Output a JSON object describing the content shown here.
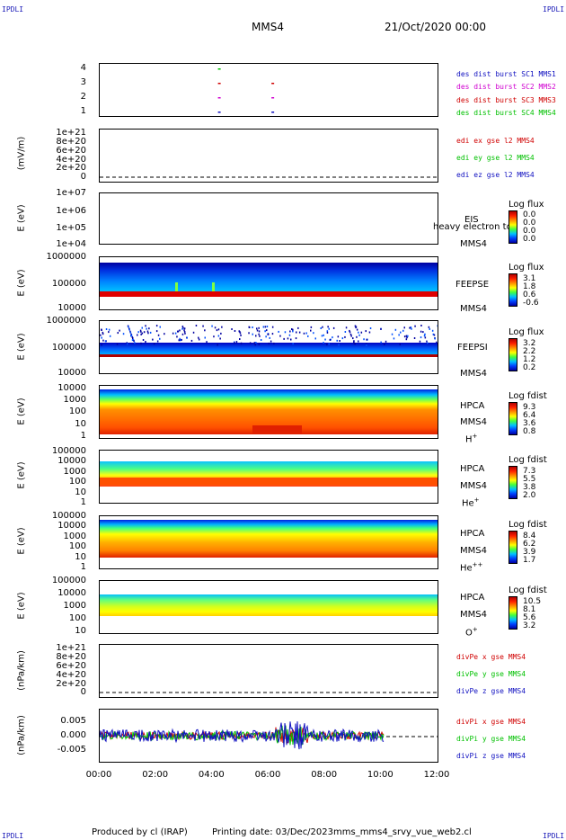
{
  "header": {
    "corner_tl": "IPDLI",
    "corner_tr": "IPDLI",
    "corner_bl": "IPDLI",
    "corner_br": "IPDLI",
    "spacecraft": "MMS4",
    "date": "21/Oct/2020 00:00"
  },
  "footer": {
    "produced_by": "Produced by cl (IRAP)",
    "printing_date": "Printing date: 03/Dec/2023",
    "script_name": "mms_mms4_srvy_vue_web2.cl"
  },
  "colors": {
    "mms1": "#1010c0",
    "mms2": "#d000d0",
    "mms3": "#d00000",
    "mms4": "#00c000",
    "x_comp": "#d00000",
    "y_comp": "#00c000",
    "z_comp": "#1010c0"
  },
  "panels": {
    "p1": {
      "yticks": [
        "4",
        "3",
        "2",
        "1"
      ],
      "legend": [
        "des dist burst SC1 MMS1",
        "des dist burst SC2 MMS2",
        "des dist burst SC3 MMS3",
        "des dist burst SC4 MMS4"
      ]
    },
    "p2": {
      "ylabel": "(mV/m)",
      "yticks": [
        "1e+21",
        "8e+20",
        "6e+20",
        "4e+20",
        "2e+20",
        "0"
      ],
      "legend": [
        "edi ex gse l2 MMS4",
        "edi ey gse l2 MMS4",
        "edi ez gse l2 MMS4"
      ]
    },
    "p3": {
      "ylabel": "E (eV)",
      "yticks": [
        "1e+07",
        "1e+06",
        "1e+05",
        "1e+04"
      ],
      "instrument": "EIS",
      "overlay": "heavy electron tc",
      "sc": "MMS4",
      "cb_title": "Log flux",
      "cb_values": [
        "0.0",
        "0.0",
        "0.0",
        "0.0"
      ]
    },
    "p4": {
      "ylabel": "E (eV)",
      "yticks": [
        "1000000",
        "100000",
        "10000"
      ],
      "instrument": "FEEPSE",
      "sc": "MMS4",
      "cb_title": "Log flux",
      "cb_values": [
        "3.1",
        "1.8",
        "0.6",
        "-0.6"
      ]
    },
    "p5": {
      "ylabel": "E (eV)",
      "yticks": [
        "1000000",
        "100000",
        "10000"
      ],
      "instrument": "FEEPSI",
      "sc": "MMS4",
      "cb_title": "Log flux",
      "cb_values": [
        "3.2",
        "2.2",
        "1.2",
        "0.2"
      ]
    },
    "p6": {
      "ylabel": "E (eV)",
      "yticks": [
        "10000",
        "1000",
        "100",
        "10",
        "1"
      ],
      "instrument": "HPCA",
      "sc": "MMS4",
      "species": "H",
      "charge": "+",
      "cb_title": "Log fdist",
      "cb_values": [
        "9.3",
        "6.4",
        "3.6",
        "0.8"
      ]
    },
    "p7": {
      "ylabel": "E (eV)",
      "yticks": [
        "100000",
        "10000",
        "1000",
        "100",
        "10",
        "1"
      ],
      "instrument": "HPCA",
      "sc": "MMS4",
      "species": "He",
      "charge": "+",
      "cb_title": "Log fdist",
      "cb_values": [
        "7.3",
        "5.5",
        "3.8",
        "2.0"
      ]
    },
    "p8": {
      "ylabel": "E (eV)",
      "yticks": [
        "100000",
        "10000",
        "1000",
        "100",
        "10",
        "1"
      ],
      "instrument": "HPCA",
      "sc": "MMS4",
      "species": "He",
      "charge": "++",
      "cb_title": "Log fdist",
      "cb_values": [
        "8.4",
        "6.2",
        "3.9",
        "1.7"
      ]
    },
    "p9": {
      "ylabel": "E (eV)",
      "yticks": [
        "100000",
        "10000",
        "1000",
        "100",
        "10"
      ],
      "instrument": "HPCA",
      "sc": "MMS4",
      "species": "O",
      "charge": "+",
      "cb_title": "Log fdist",
      "cb_values": [
        "10.5",
        "8.1",
        "5.6",
        "3.2"
      ]
    },
    "p10": {
      "ylabel": "(nPa/km)",
      "yticks": [
        "1e+21",
        "8e+20",
        "6e+20",
        "4e+20",
        "2e+20",
        "0"
      ],
      "legend": [
        "divPe x gse MMS4",
        "divPe y gse MMS4",
        "divPe z gse MMS4"
      ]
    },
    "p11": {
      "ylabel": "(nPa/km)",
      "yticks": [
        "0.005",
        "0.000",
        "-0.005"
      ],
      "legend": [
        "divPi x gse MMS4",
        "divPi y gse MMS4",
        "divPi z gse MMS4"
      ]
    }
  },
  "chart_data": {
    "type": "heatmap",
    "x_ticks": [
      "00:00",
      "02:00",
      "04:00",
      "06:00",
      "08:00",
      "10:00",
      "12:00"
    ],
    "x_range_hours": [
      0,
      12
    ],
    "data_end_hours": 10.1,
    "burst_markers": [
      {
        "sc": 4,
        "hour": 4.2
      },
      {
        "sc": 3,
        "hour": 4.2
      },
      {
        "sc": 3,
        "hour": 6.1
      },
      {
        "sc": 2,
        "hour": 4.2
      },
      {
        "sc": 2,
        "hour": 6.1
      },
      {
        "sc": 1,
        "hour": 4.2
      },
      {
        "sc": 1,
        "hour": 6.1
      }
    ],
    "divPi_ylim": [
      -0.0085,
      0.0085
    ]
  }
}
